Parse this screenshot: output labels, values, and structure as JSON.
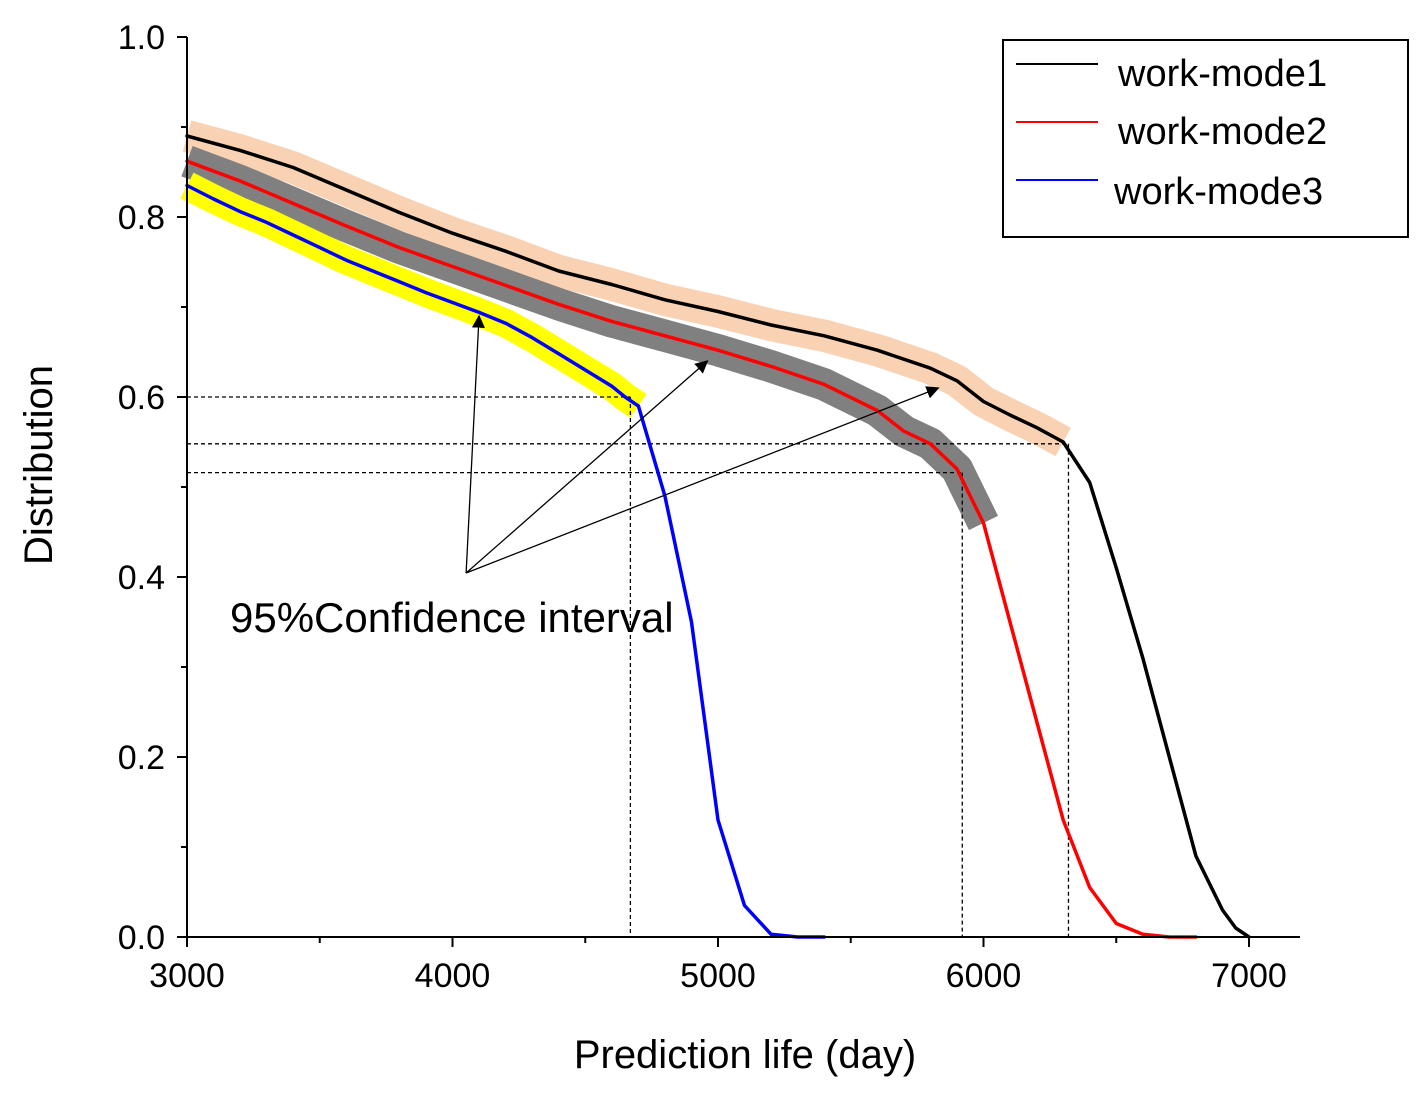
{
  "chart_data": {
    "type": "line",
    "title": "",
    "xlabel": "Prediction life (day)",
    "ylabel": "Distribution",
    "xlim": [
      3000,
      7200
    ],
    "ylim": [
      0,
      1.0
    ],
    "xticks": [
      3000,
      4000,
      5000,
      6000,
      7000
    ],
    "xtick_labels": [
      "3000",
      "4000",
      "5000",
      "6000",
      "7000"
    ],
    "yticks": [
      0,
      0.2,
      0.4,
      0.6,
      0.8,
      1.0
    ],
    "ytick_labels": [
      "0.0",
      "0.2",
      "0.4",
      "0.6",
      "0.8",
      "1.0"
    ],
    "grid": false,
    "legend_position": "top-right",
    "series": [
      {
        "name": "work-mode1",
        "color": "#000000",
        "band_color": "#f9d2b4",
        "band_halfwidth": 0.018,
        "band_end": 6320,
        "x": [
          3000,
          3200,
          3400,
          3600,
          3800,
          4000,
          4200,
          4400,
          4600,
          4800,
          5000,
          5200,
          5400,
          5600,
          5800,
          5900,
          6000,
          6100,
          6200,
          6300,
          6400,
          6500,
          6600,
          6700,
          6800,
          6850,
          6900,
          6950,
          7000
        ],
        "y": [
          0.89,
          0.874,
          0.855,
          0.83,
          0.805,
          0.782,
          0.762,
          0.74,
          0.725,
          0.708,
          0.695,
          0.68,
          0.668,
          0.652,
          0.632,
          0.618,
          0.595,
          0.58,
          0.566,
          0.55,
          0.505,
          0.41,
          0.31,
          0.2,
          0.09,
          0.06,
          0.03,
          0.01,
          0.0
        ]
      },
      {
        "name": "work-mode2",
        "color": "#ff0000",
        "band_color": "#808080",
        "band_halfwidth": 0.018,
        "band_end": 6010,
        "x": [
          3000,
          3200,
          3400,
          3600,
          3800,
          4000,
          4200,
          4400,
          4600,
          4800,
          5000,
          5200,
          5400,
          5600,
          5700,
          5800,
          5900,
          5950,
          6000,
          6100,
          6200,
          6300,
          6400,
          6500,
          6600,
          6700,
          6800
        ],
        "y": [
          0.862,
          0.84,
          0.815,
          0.79,
          0.766,
          0.745,
          0.724,
          0.703,
          0.684,
          0.668,
          0.652,
          0.634,
          0.614,
          0.585,
          0.562,
          0.548,
          0.52,
          0.49,
          0.46,
          0.35,
          0.24,
          0.13,
          0.055,
          0.015,
          0.003,
          0.0,
          0.0
        ]
      },
      {
        "name": "work-mode3",
        "color": "#0000ff",
        "band_color": "#ffff00",
        "band_halfwidth": 0.016,
        "band_end": 4700,
        "x": [
          3000,
          3100,
          3200,
          3300,
          3400,
          3500,
          3600,
          3700,
          3800,
          3900,
          4000,
          4100,
          4200,
          4300,
          4400,
          4500,
          4600,
          4650,
          4700,
          4800,
          4900,
          5000,
          5100,
          5200,
          5300,
          5400
        ],
        "y": [
          0.835,
          0.82,
          0.806,
          0.794,
          0.78,
          0.766,
          0.752,
          0.74,
          0.728,
          0.716,
          0.705,
          0.694,
          0.682,
          0.666,
          0.648,
          0.63,
          0.612,
          0.6,
          0.59,
          0.49,
          0.35,
          0.13,
          0.035,
          0.003,
          0.0,
          0.0
        ]
      }
    ],
    "reference_lines": {
      "y_values": [
        0.6,
        0.548,
        0.516
      ],
      "x_values": [
        4670,
        5920,
        6320
      ]
    },
    "annotation": {
      "text": "95%Confidence interval",
      "origin": [
        4040,
        0.4
      ],
      "arrow_targets": [
        [
          4100,
          0.69
        ],
        [
          4960,
          0.64
        ],
        [
          5830,
          0.61
        ]
      ]
    }
  }
}
